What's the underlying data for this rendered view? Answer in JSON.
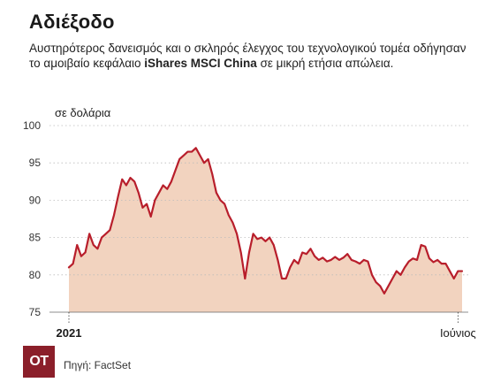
{
  "header": {
    "title": "Αδιέξοδο",
    "subtitle_pre": "Αυστηρότερος δανεισμός και ο σκληρός έλεγχος του τεχνολογικού τομέα οδήγησαν το αμοιβαίο κεφάλαιο ",
    "subtitle_bold": "iShares MSCI China",
    "subtitle_post": " σε μικρή ετήσια απώλεια."
  },
  "unit_label": "σε δολάρια",
  "footer": {
    "logo": "OT",
    "source": "Πηγή: FactSet"
  },
  "colors": {
    "line": "#b81e2b",
    "fill": "#f2d3bf",
    "grid": "#bbbbbb",
    "logo_bg": "#8b1f2a"
  },
  "chart_data": {
    "type": "area",
    "title": "Αδιέξοδο",
    "ylabel": "σε δολάρια",
    "ylim": [
      75,
      100
    ],
    "yticks": [
      75,
      80,
      85,
      90,
      95,
      100
    ],
    "xtick_labels": [
      {
        "label": "2021",
        "bold": true,
        "index": 0
      },
      {
        "label": "Ιούνιος",
        "bold": false,
        "index": 95
      }
    ],
    "grid": "horizontal-dotted",
    "x_unit": "trading day (approx. late Dec 2020 → mid Jul 2021)",
    "values": [
      81.0,
      81.5,
      84.0,
      82.5,
      83.0,
      85.5,
      84.0,
      83.5,
      85.0,
      85.5,
      86.0,
      88.0,
      90.5,
      92.8,
      92.0,
      93.0,
      92.5,
      91.0,
      89.0,
      89.5,
      87.8,
      90.0,
      91.0,
      92.0,
      91.5,
      92.5,
      94.0,
      95.5,
      96.0,
      96.5,
      96.5,
      97.0,
      96.0,
      95.0,
      95.5,
      93.5,
      91.0,
      90.0,
      89.5,
      88.0,
      87.0,
      85.5,
      83.0,
      79.5,
      83.0,
      85.5,
      84.8,
      85.0,
      84.5,
      85.0,
      84.0,
      82.0,
      79.5,
      79.5,
      81.0,
      82.0,
      81.5,
      83.0,
      82.8,
      83.5,
      82.5,
      82.0,
      82.3,
      81.8,
      82.0,
      82.4,
      82.0,
      82.3,
      82.8,
      82.0,
      81.8,
      81.5,
      82.0,
      81.8,
      80.0,
      79.0,
      78.5,
      77.5,
      78.5,
      79.5,
      80.5,
      80.0,
      81.0,
      81.8,
      82.2,
      82.0,
      84.0,
      83.8,
      82.2,
      81.7,
      82.0,
      81.5,
      81.5,
      80.5,
      79.5,
      80.5,
      80.5
    ]
  }
}
